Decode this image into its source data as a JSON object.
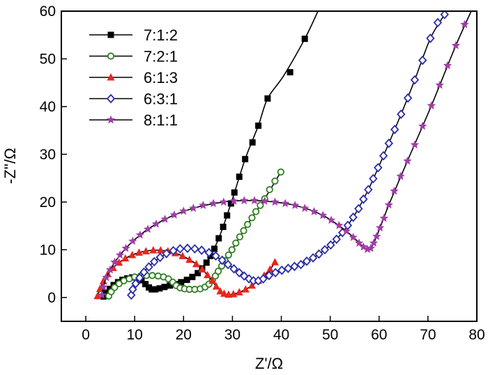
{
  "chart_data": {
    "type": "scatter",
    "title": "",
    "xlabel": "Z'/Ω",
    "ylabel": "-Z''/Ω",
    "xlim": [
      -5,
      80
    ],
    "ylim": [
      -5,
      60
    ],
    "xticks": [
      0,
      10,
      20,
      30,
      40,
      50,
      60,
      70,
      80
    ],
    "yticks": [
      0,
      10,
      20,
      30,
      40,
      50,
      60
    ],
    "legend_position": "top-left",
    "series": [
      {
        "name": "7:1:2",
        "color": "#000000",
        "marker": "square-filled",
        "points": [
          [
            3.6,
            0.2
          ],
          [
            4.2,
            1.0
          ],
          [
            4.9,
            1.8
          ],
          [
            5.7,
            2.6
          ],
          [
            6.6,
            3.2
          ],
          [
            7.5,
            3.7
          ],
          [
            8.5,
            4.0
          ],
          [
            9.5,
            4.2
          ],
          [
            10.5,
            4.1
          ],
          [
            11.4,
            3.6
          ],
          [
            12.2,
            2.8
          ],
          [
            12.9,
            2.1
          ],
          [
            13.5,
            1.7
          ],
          [
            14.2,
            1.7
          ],
          [
            15.1,
            1.9
          ],
          [
            16.1,
            2.2
          ],
          [
            17.2,
            2.5
          ],
          [
            18.3,
            2.8
          ],
          [
            19.5,
            3.2
          ],
          [
            20.7,
            3.7
          ],
          [
            21.8,
            4.3
          ],
          [
            22.9,
            5.1
          ],
          [
            23.8,
            6.1
          ],
          [
            24.7,
            7.3
          ],
          [
            25.5,
            8.7
          ],
          [
            26.3,
            10.2
          ],
          [
            27.2,
            12.4
          ],
          [
            28.1,
            14.8
          ],
          [
            28.9,
            17.2
          ],
          [
            29.7,
            19.7
          ],
          [
            30.4,
            22.0
          ],
          [
            31.4,
            25.3
          ],
          [
            32.6,
            29.0
          ],
          [
            34.1,
            32.5
          ],
          [
            35.3,
            36.0
          ],
          [
            37.2,
            41.7
          ],
          [
            41.8,
            47.2
          ],
          [
            44.8,
            54.2
          ]
        ],
        "line": [
          [
            3.6,
            0.2
          ],
          [
            6.6,
            3.2
          ],
          [
            9.5,
            4.2
          ],
          [
            11.4,
            3.6
          ],
          [
            13.5,
            1.7
          ],
          [
            17.2,
            2.5
          ],
          [
            21.8,
            4.3
          ],
          [
            24.7,
            7.3
          ],
          [
            27.2,
            12.4
          ],
          [
            29.7,
            19.7
          ],
          [
            32.6,
            29.0
          ],
          [
            35.3,
            36.0
          ],
          [
            37.2,
            41.7
          ],
          [
            40.5,
            46.5
          ],
          [
            44.8,
            54.2
          ],
          [
            47.5,
            60.0
          ]
        ]
      },
      {
        "name": "7:2:1",
        "color": "#2e7d1f",
        "marker": "circle-open",
        "points": [
          [
            4.7,
            0.3
          ],
          [
            5.2,
            1.2
          ],
          [
            5.9,
            2.1
          ],
          [
            6.8,
            2.9
          ],
          [
            7.8,
            3.5
          ],
          [
            8.9,
            3.9
          ],
          [
            10.0,
            4.3
          ],
          [
            11.2,
            4.5
          ],
          [
            12.4,
            4.6
          ],
          [
            13.6,
            4.6
          ],
          [
            14.8,
            4.5
          ],
          [
            15.9,
            4.3
          ],
          [
            16.9,
            3.9
          ],
          [
            17.8,
            3.2
          ],
          [
            18.5,
            2.5
          ],
          [
            19.3,
            2.0
          ],
          [
            20.2,
            1.8
          ],
          [
            21.2,
            1.7
          ],
          [
            22.3,
            1.7
          ],
          [
            23.4,
            1.8
          ],
          [
            24.4,
            2.2
          ],
          [
            25.2,
            2.8
          ],
          [
            25.9,
            3.6
          ],
          [
            26.5,
            4.5
          ],
          [
            27.1,
            5.5
          ],
          [
            27.8,
            6.6
          ],
          [
            28.5,
            7.7
          ],
          [
            29.2,
            8.9
          ],
          [
            29.9,
            10.0
          ],
          [
            30.7,
            11.4
          ],
          [
            31.5,
            12.7
          ],
          [
            32.3,
            14.0
          ],
          [
            33.1,
            15.3
          ],
          [
            34.0,
            16.7
          ],
          [
            34.8,
            18.0
          ],
          [
            35.7,
            19.3
          ],
          [
            36.6,
            20.7
          ],
          [
            37.6,
            22.6
          ],
          [
            38.7,
            24.4
          ],
          [
            39.9,
            26.3
          ]
        ],
        "line": [
          [
            4.7,
            0.3
          ],
          [
            6.8,
            2.9
          ],
          [
            10.0,
            4.3
          ],
          [
            13.6,
            4.6
          ],
          [
            16.9,
            3.9
          ],
          [
            18.5,
            2.5
          ],
          [
            21.2,
            1.7
          ],
          [
            23.4,
            1.8
          ],
          [
            25.2,
            2.8
          ],
          [
            27.1,
            5.5
          ],
          [
            29.9,
            10.0
          ],
          [
            33.1,
            15.3
          ],
          [
            36.6,
            20.7
          ],
          [
            39.9,
            26.3
          ]
        ]
      },
      {
        "name": "6:1:3",
        "color": "#e8261c",
        "marker": "triangle-filled",
        "points": [
          [
            2.4,
            0.3
          ],
          [
            2.9,
            1.8
          ],
          [
            3.6,
            3.4
          ],
          [
            4.5,
            4.9
          ],
          [
            5.6,
            6.2
          ],
          [
            6.8,
            7.3
          ],
          [
            8.1,
            8.2
          ],
          [
            9.5,
            8.9
          ],
          [
            10.9,
            9.4
          ],
          [
            12.3,
            9.7
          ],
          [
            13.8,
            9.9
          ],
          [
            15.3,
            9.9
          ],
          [
            16.8,
            9.7
          ],
          [
            18.3,
            9.3
          ],
          [
            19.8,
            8.7
          ],
          [
            21.2,
            7.9
          ],
          [
            22.6,
            7.0
          ],
          [
            23.8,
            5.9
          ],
          [
            24.9,
            4.7
          ],
          [
            25.9,
            3.5
          ],
          [
            26.7,
            2.3
          ],
          [
            27.5,
            1.3
          ],
          [
            28.3,
            0.8
          ],
          [
            29.2,
            0.6
          ],
          [
            30.2,
            0.7
          ],
          [
            31.4,
            1.1
          ],
          [
            32.7,
            1.7
          ],
          [
            34.0,
            2.5
          ],
          [
            35.3,
            3.5
          ],
          [
            36.5,
            4.6
          ],
          [
            37.7,
            5.9
          ],
          [
            38.7,
            7.4
          ]
        ],
        "line": [
          [
            2.4,
            0.3
          ],
          [
            3.6,
            3.4
          ],
          [
            5.6,
            6.2
          ],
          [
            8.1,
            8.2
          ],
          [
            10.9,
            9.4
          ],
          [
            13.8,
            9.9
          ],
          [
            16.8,
            9.7
          ],
          [
            19.8,
            8.7
          ],
          [
            22.6,
            7.0
          ],
          [
            24.9,
            4.7
          ],
          [
            26.7,
            2.3
          ],
          [
            28.3,
            0.8
          ],
          [
            30.2,
            0.7
          ],
          [
            32.7,
            1.7
          ],
          [
            35.3,
            3.5
          ],
          [
            37.7,
            5.9
          ],
          [
            38.7,
            7.4
          ]
        ]
      },
      {
        "name": "6:3:1",
        "color": "#2a2da8",
        "marker": "diamond-open",
        "points": [
          [
            9.3,
            0.5
          ],
          [
            9.6,
            1.7
          ],
          [
            10.2,
            2.9
          ],
          [
            11.0,
            4.1
          ],
          [
            11.9,
            5.3
          ],
          [
            12.9,
            6.4
          ],
          [
            14.0,
            7.5
          ],
          [
            15.2,
            8.4
          ],
          [
            16.5,
            9.2
          ],
          [
            17.9,
            9.8
          ],
          [
            19.3,
            10.2
          ],
          [
            20.8,
            10.3
          ],
          [
            22.3,
            10.2
          ],
          [
            23.7,
            9.9
          ],
          [
            25.2,
            9.4
          ],
          [
            26.6,
            8.7
          ],
          [
            27.9,
            7.8
          ],
          [
            29.1,
            6.9
          ],
          [
            30.3,
            6.0
          ],
          [
            31.4,
            5.2
          ],
          [
            32.4,
            4.5
          ],
          [
            33.4,
            3.9
          ],
          [
            34.3,
            3.5
          ],
          [
            35.3,
            3.5
          ],
          [
            36.3,
            3.9
          ],
          [
            37.5,
            4.6
          ],
          [
            38.8,
            5.2
          ],
          [
            40.1,
            5.7
          ],
          [
            41.4,
            6.1
          ],
          [
            42.7,
            6.5
          ],
          [
            44.0,
            6.9
          ],
          [
            45.2,
            7.6
          ],
          [
            46.5,
            8.3
          ],
          [
            47.7,
            9.1
          ],
          [
            48.9,
            10.0
          ],
          [
            50.1,
            11.0
          ],
          [
            51.3,
            12.2
          ],
          [
            52.5,
            13.6
          ],
          [
            53.6,
            15.1
          ],
          [
            54.7,
            16.8
          ],
          [
            55.8,
            18.6
          ],
          [
            56.8,
            20.6
          ],
          [
            57.8,
            22.6
          ],
          [
            58.8,
            24.9
          ],
          [
            59.8,
            27.2
          ],
          [
            60.9,
            29.7
          ],
          [
            62.0,
            32.3
          ],
          [
            63.2,
            35.2
          ],
          [
            64.5,
            38.4
          ],
          [
            65.9,
            41.8
          ],
          [
            67.3,
            45.6
          ],
          [
            68.9,
            49.7
          ],
          [
            70.5,
            54.3
          ],
          [
            72.0,
            57.6
          ],
          [
            73.4,
            59.3
          ]
        ],
        "line": [
          [
            9.3,
            0.5
          ],
          [
            11.0,
            4.1
          ],
          [
            14.0,
            7.5
          ],
          [
            17.9,
            9.8
          ],
          [
            20.8,
            10.3
          ],
          [
            23.7,
            9.9
          ],
          [
            27.9,
            7.8
          ],
          [
            31.4,
            5.2
          ],
          [
            34.3,
            3.5
          ],
          [
            35.3,
            3.5
          ],
          [
            37.5,
            4.6
          ],
          [
            41.4,
            6.1
          ],
          [
            44.0,
            6.9
          ],
          [
            47.7,
            9.1
          ],
          [
            51.3,
            12.2
          ],
          [
            54.7,
            16.8
          ],
          [
            57.8,
            22.6
          ],
          [
            60.9,
            29.7
          ],
          [
            64.5,
            38.4
          ],
          [
            67.3,
            45.6
          ],
          [
            70.5,
            54.3
          ],
          [
            73.4,
            59.3
          ],
          [
            74.5,
            61.0
          ]
        ]
      },
      {
        "name": "8:1:1",
        "color": "#a03ea8",
        "marker": "star-filled",
        "points": [
          [
            3.3,
            0.5
          ],
          [
            3.6,
            2.2
          ],
          [
            4.2,
            4.2
          ],
          [
            5.0,
            5.8
          ],
          [
            5.9,
            7.4
          ],
          [
            7.0,
            8.9
          ],
          [
            8.2,
            10.3
          ],
          [
            9.6,
            11.8
          ],
          [
            11.1,
            13.1
          ],
          [
            12.7,
            14.3
          ],
          [
            14.4,
            15.4
          ],
          [
            16.2,
            16.4
          ],
          [
            18.1,
            17.3
          ],
          [
            20.0,
            18.1
          ],
          [
            22.0,
            18.7
          ],
          [
            24.0,
            19.3
          ],
          [
            26.1,
            19.7
          ],
          [
            28.2,
            20.0
          ],
          [
            30.3,
            20.2
          ],
          [
            32.4,
            20.3
          ],
          [
            34.5,
            20.3
          ],
          [
            36.6,
            20.2
          ],
          [
            38.7,
            20.0
          ],
          [
            40.8,
            19.7
          ],
          [
            42.8,
            19.3
          ],
          [
            44.8,
            18.7
          ],
          [
            46.7,
            18.0
          ],
          [
            48.5,
            17.2
          ],
          [
            50.2,
            16.2
          ],
          [
            51.8,
            15.1
          ],
          [
            53.3,
            13.9
          ],
          [
            54.7,
            12.6
          ],
          [
            55.9,
            11.4
          ],
          [
            56.8,
            10.6
          ],
          [
            57.6,
            10.1
          ],
          [
            58.3,
            10.3
          ],
          [
            58.9,
            11.4
          ],
          [
            59.5,
            12.8
          ],
          [
            60.2,
            14.6
          ],
          [
            61.0,
            16.6
          ],
          [
            62.0,
            19.4
          ],
          [
            63.1,
            22.3
          ],
          [
            64.4,
            25.4
          ],
          [
            65.8,
            28.6
          ],
          [
            67.3,
            32.0
          ],
          [
            68.9,
            35.9
          ],
          [
            70.7,
            40.2
          ],
          [
            72.4,
            44.5
          ],
          [
            74.0,
            48.6
          ],
          [
            75.7,
            52.8
          ],
          [
            77.5,
            57.2
          ],
          [
            79.3,
            61.0
          ]
        ],
        "line": [
          [
            3.3,
            0.5
          ],
          [
            4.2,
            4.2
          ],
          [
            7.0,
            8.9
          ],
          [
            11.1,
            13.1
          ],
          [
            16.2,
            16.4
          ],
          [
            22.0,
            18.7
          ],
          [
            28.2,
            20.0
          ],
          [
            32.4,
            20.3
          ],
          [
            36.6,
            20.2
          ],
          [
            42.8,
            19.3
          ],
          [
            48.5,
            17.2
          ],
          [
            53.3,
            13.9
          ],
          [
            56.8,
            10.6
          ],
          [
            57.6,
            10.1
          ],
          [
            58.3,
            10.3
          ],
          [
            59.5,
            12.8
          ],
          [
            62.0,
            19.4
          ],
          [
            65.8,
            28.6
          ],
          [
            70.7,
            40.2
          ],
          [
            75.7,
            52.8
          ],
          [
            79.3,
            61.0
          ]
        ]
      }
    ]
  }
}
